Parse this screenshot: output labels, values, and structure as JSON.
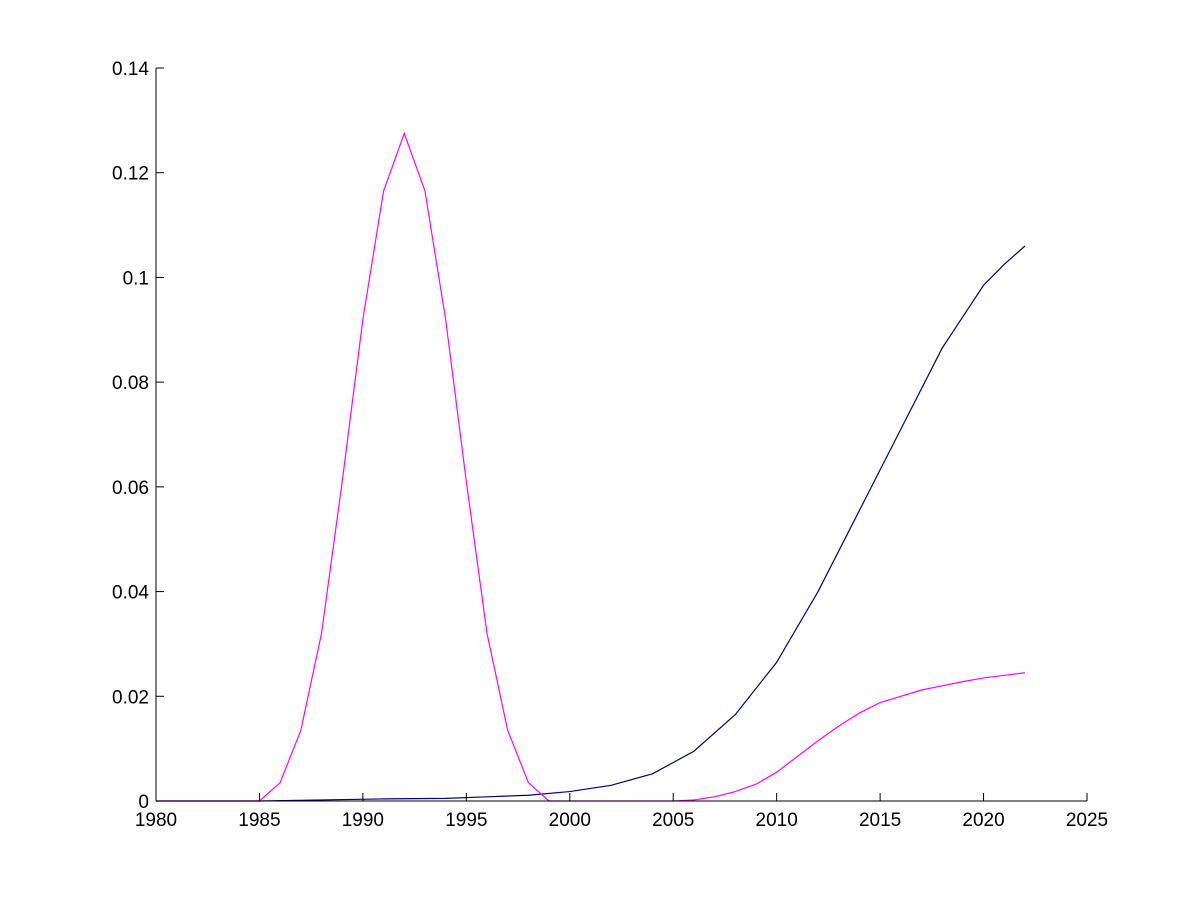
{
  "chart_data": {
    "type": "line",
    "title": "",
    "xlabel": "",
    "ylabel": "",
    "xlim": [
      1980,
      2025
    ],
    "ylim": [
      0,
      0.14
    ],
    "x_ticks": [
      {
        "value": 1980,
        "label": "1980"
      },
      {
        "value": 1985,
        "label": "1985"
      },
      {
        "value": 1990,
        "label": "1990"
      },
      {
        "value": 1995,
        "label": "1995"
      },
      {
        "value": 2000,
        "label": "2000"
      },
      {
        "value": 2005,
        "label": "2005"
      },
      {
        "value": 2010,
        "label": "2010"
      },
      {
        "value": 2015,
        "label": "2015"
      },
      {
        "value": 2020,
        "label": "2020"
      },
      {
        "value": 2025,
        "label": "2025"
      }
    ],
    "y_ticks": [
      {
        "value": 0,
        "label": "0"
      },
      {
        "value": 0.02,
        "label": "0.02"
      },
      {
        "value": 0.04,
        "label": "0.04"
      },
      {
        "value": 0.06,
        "label": "0.06"
      },
      {
        "value": 0.08,
        "label": "0.08"
      },
      {
        "value": 0.1,
        "label": "0.1"
      },
      {
        "value": 0.12,
        "label": "0.12"
      },
      {
        "value": 0.14,
        "label": "0.14"
      }
    ],
    "grid": false,
    "legend": "none",
    "series": [
      {
        "color": "#000080",
        "x": [
          1980,
          1985,
          1988,
          1991,
          1994,
          1996,
          1998,
          2000,
          2002,
          2004,
          2006,
          2008,
          2010,
          2012,
          2014,
          2016,
          2018,
          2019,
          2020,
          2021,
          2022
        ],
        "y": [
          0,
          0,
          0.0002,
          0.0004,
          0.0005,
          0.0008,
          0.0011,
          0.0018,
          0.003,
          0.0052,
          0.0095,
          0.0165,
          0.0265,
          0.04,
          0.0555,
          0.071,
          0.0865,
          0.0925,
          0.0985,
          0.1025,
          0.106
        ]
      },
      {
        "color": "#ff00ff",
        "x": [
          1980,
          1985,
          1986,
          1987,
          1988,
          1989,
          1990,
          1991,
          1992,
          1993,
          1994,
          1995,
          1996,
          1997,
          1998,
          1999,
          2000,
          2005,
          2006,
          2007,
          2008,
          2009,
          2010,
          2011,
          2012,
          2013,
          2014,
          2015,
          2016,
          2017,
          2018,
          2019,
          2020,
          2021,
          2022
        ],
        "y": [
          0,
          0,
          0.0035,
          0.0135,
          0.032,
          0.061,
          0.092,
          0.1165,
          0.1275,
          0.1165,
          0.092,
          0.061,
          0.032,
          0.0135,
          0.0035,
          0,
          0,
          0,
          0.0002,
          0.0008,
          0.0018,
          0.0032,
          0.0055,
          0.0085,
          0.0115,
          0.0143,
          0.0168,
          0.0188,
          0.02,
          0.0212,
          0.022,
          0.0228,
          0.0235,
          0.024,
          0.0245
        ]
      }
    ]
  }
}
